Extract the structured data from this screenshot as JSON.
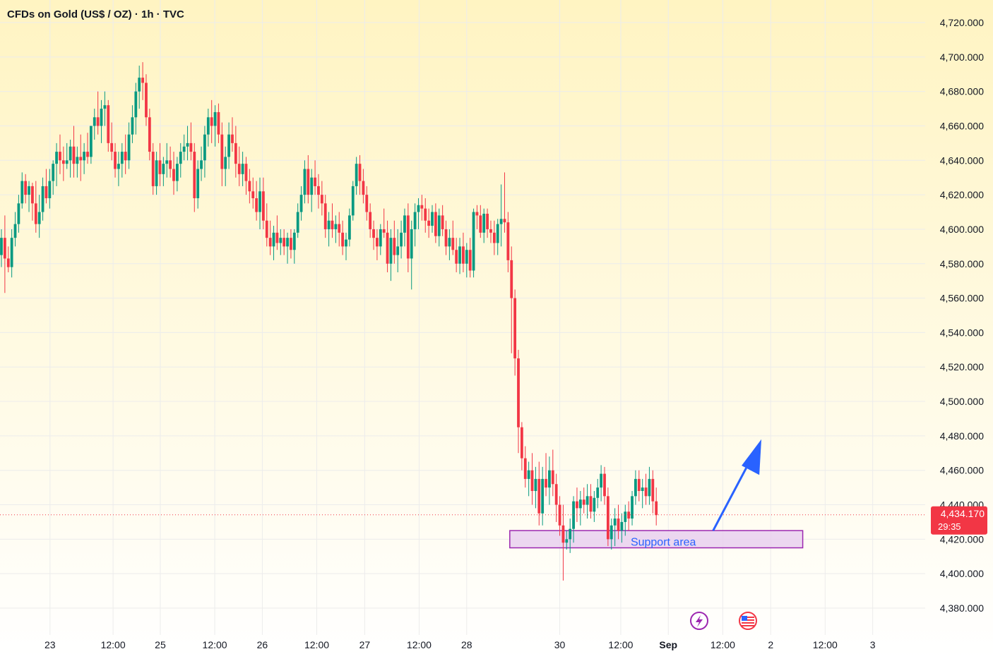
{
  "header": {
    "title": "CFDs on Gold (US$ / OZ) · 1h · TVC"
  },
  "price_badge": {
    "price": "4,434.170",
    "countdown": "29:35"
  },
  "annotation": {
    "support_label": "Support area"
  },
  "icons": [
    "lightning-event-icon",
    "us-flag-event-icon"
  ],
  "colors": {
    "bull": "#089981",
    "bear": "#f23645",
    "support_fill": "#e9d0ee",
    "support_border": "#9c27b0",
    "support_text": "#2962ff",
    "arrow": "#2962ff",
    "badge": "#f23645",
    "grid": "#ececec",
    "bg_top": "#fff4c2",
    "bg_bottom": "#ffffff"
  },
  "chart_data": {
    "type": "candlestick",
    "title": "CFDs on Gold (US$ / OZ) · 1h · TVC",
    "xlabel": "",
    "ylabel": "",
    "ylim": [
      4372,
      4733
    ],
    "y_ticks": [
      4380,
      4400,
      4420,
      4440,
      4460,
      4480,
      4500,
      4520,
      4540,
      4560,
      4580,
      4600,
      4620,
      4640,
      4660,
      4680,
      4700,
      4720
    ],
    "y_tick_labels": [
      "4,380.000",
      "4,400.000",
      "4,420.000",
      "4,440.000",
      "4,460.000",
      "4,480.000",
      "4,500.000",
      "4,520.000",
      "4,540.000",
      "4,560.000",
      "4,580.000",
      "4,600.000",
      "4,620.000",
      "4,640.000",
      "4,660.000",
      "4,680.000",
      "4,700.000",
      "4,720.000"
    ],
    "x_ticks": [
      {
        "idx": 14.1,
        "label": "23"
      },
      {
        "idx": 32.4,
        "label": "12:00"
      },
      {
        "idx": 46.1,
        "label": "25"
      },
      {
        "idx": 61.9,
        "label": "12:00"
      },
      {
        "idx": 75.7,
        "label": "26"
      },
      {
        "idx": 91.5,
        "label": "12:00"
      },
      {
        "idx": 105.4,
        "label": "27"
      },
      {
        "idx": 121.2,
        "label": "12:00"
      },
      {
        "idx": 135.0,
        "label": "28"
      },
      {
        "idx": 162.0,
        "label": "30"
      },
      {
        "idx": 179.7,
        "label": "12:00"
      },
      {
        "idx": 193.5,
        "label": "Sep"
      },
      {
        "idx": 209.3,
        "label": "12:00"
      },
      {
        "idx": 223.2,
        "label": "2"
      },
      {
        "idx": 239.0,
        "label": "12:00"
      },
      {
        "idx": 252.8,
        "label": "3"
      }
    ],
    "grid": true,
    "current_price": 4434.17,
    "support_zone": {
      "low": 4415,
      "high": 4425,
      "start_idx": 147.5,
      "end_idx": 232.5
    },
    "arrow": {
      "from_idx": 206.5,
      "from_price": 4425,
      "to_idx": 220.5,
      "to_price": 4478
    },
    "ohlc": [
      [
        4585,
        4600,
        4578,
        4595
      ],
      [
        4595,
        4608,
        4563,
        4583
      ],
      [
        4583,
        4590,
        4575,
        4578
      ],
      [
        4578,
        4600,
        4572,
        4595
      ],
      [
        4595,
        4610,
        4590,
        4603
      ],
      [
        4603,
        4620,
        4598,
        4615
      ],
      [
        4615,
        4633,
        4612,
        4628
      ],
      [
        4628,
        4632,
        4615,
        4620
      ],
      [
        4620,
        4628,
        4610,
        4625
      ],
      [
        4625,
        4627,
        4605,
        4615
      ],
      [
        4615,
        4628,
        4598,
        4603
      ],
      [
        4603,
        4620,
        4595,
        4610
      ],
      [
        4610,
        4630,
        4605,
        4625
      ],
      [
        4625,
        4635,
        4615,
        4618
      ],
      [
        4618,
        4635,
        4612,
        4628
      ],
      [
        4628,
        4640,
        4620,
        4638
      ],
      [
        4638,
        4650,
        4625,
        4645
      ],
      [
        4645,
        4655,
        4632,
        4640
      ],
      [
        4640,
        4648,
        4628,
        4638
      ],
      [
        4638,
        4650,
        4635,
        4640
      ],
      [
        4640,
        4652,
        4630,
        4648
      ],
      [
        4648,
        4660,
        4630,
        4638
      ],
      [
        4638,
        4648,
        4630,
        4642
      ],
      [
        4642,
        4655,
        4628,
        4640
      ],
      [
        4640,
        4650,
        4632,
        4645
      ],
      [
        4645,
        4656,
        4638,
        4642
      ],
      [
        4642,
        4660,
        4638,
        4660
      ],
      [
        4660,
        4670,
        4652,
        4665
      ],
      [
        4665,
        4680,
        4655,
        4660
      ],
      [
        4660,
        4675,
        4650,
        4670
      ],
      [
        4670,
        4680,
        4660,
        4672
      ],
      [
        4672,
        4675,
        4645,
        4650
      ],
      [
        4650,
        4662,
        4640,
        4645
      ],
      [
        4645,
        4650,
        4630,
        4635
      ],
      [
        4635,
        4645,
        4625,
        4638
      ],
      [
        4638,
        4650,
        4630,
        4645
      ],
      [
        4645,
        4655,
        4632,
        4640
      ],
      [
        4640,
        4662,
        4635,
        4655
      ],
      [
        4655,
        4672,
        4650,
        4665
      ],
      [
        4665,
        4685,
        4655,
        4680
      ],
      [
        4680,
        4695,
        4670,
        4688
      ],
      [
        4688,
        4697,
        4675,
        4685
      ],
      [
        4685,
        4690,
        4660,
        4665
      ],
      [
        4665,
        4670,
        4640,
        4645
      ],
      [
        4645,
        4650,
        4620,
        4625
      ],
      [
        4625,
        4645,
        4620,
        4640
      ],
      [
        4640,
        4650,
        4625,
        4632
      ],
      [
        4632,
        4642,
        4625,
        4638
      ],
      [
        4638,
        4650,
        4630,
        4640
      ],
      [
        4640,
        4648,
        4630,
        4635
      ],
      [
        4635,
        4645,
        4620,
        4628
      ],
      [
        4628,
        4642,
        4622,
        4638
      ],
      [
        4638,
        4650,
        4630,
        4645
      ],
      [
        4645,
        4655,
        4640,
        4648
      ],
      [
        4648,
        4660,
        4640,
        4650
      ],
      [
        4650,
        4662,
        4640,
        4645
      ],
      [
        4645,
        4650,
        4610,
        4618
      ],
      [
        4618,
        4640,
        4612,
        4635
      ],
      [
        4635,
        4648,
        4628,
        4640
      ],
      [
        4640,
        4660,
        4630,
        4655
      ],
      [
        4655,
        4670,
        4648,
        4665
      ],
      [
        4665,
        4675,
        4650,
        4660
      ],
      [
        4660,
        4672,
        4648,
        4668
      ],
      [
        4668,
        4673,
        4650,
        4655
      ],
      [
        4655,
        4662,
        4625,
        4635
      ],
      [
        4635,
        4648,
        4625,
        4642
      ],
      [
        4642,
        4662,
        4635,
        4655
      ],
      [
        4655,
        4665,
        4645,
        4650
      ],
      [
        4650,
        4660,
        4630,
        4638
      ],
      [
        4638,
        4648,
        4625,
        4632
      ],
      [
        4632,
        4645,
        4625,
        4638
      ],
      [
        4638,
        4642,
        4620,
        4628
      ],
      [
        4628,
        4635,
        4615,
        4622
      ],
      [
        4622,
        4630,
        4612,
        4618
      ],
      [
        4618,
        4628,
        4605,
        4610
      ],
      [
        4610,
        4630,
        4600,
        4622
      ],
      [
        4622,
        4630,
        4600,
        4605
      ],
      [
        4605,
        4615,
        4590,
        4595
      ],
      [
        4595,
        4605,
        4585,
        4590
      ],
      [
        4590,
        4602,
        4582,
        4598
      ],
      [
        4598,
        4608,
        4588,
        4592
      ],
      [
        4592,
        4600,
        4585,
        4595
      ],
      [
        4595,
        4600,
        4585,
        4590
      ],
      [
        4590,
        4598,
        4580,
        4595
      ],
      [
        4595,
        4600,
        4583,
        4588
      ],
      [
        4588,
        4600,
        4580,
        4598
      ],
      [
        4598,
        4615,
        4595,
        4610
      ],
      [
        4610,
        4625,
        4605,
        4620
      ],
      [
        4620,
        4640,
        4615,
        4635
      ],
      [
        4635,
        4643,
        4615,
        4620
      ],
      [
        4620,
        4635,
        4610,
        4630
      ],
      [
        4630,
        4640,
        4620,
        4625
      ],
      [
        4625,
        4632,
        4612,
        4620
      ],
      [
        4620,
        4628,
        4608,
        4615
      ],
      [
        4615,
        4620,
        4595,
        4600
      ],
      [
        4600,
        4610,
        4590,
        4605
      ],
      [
        4605,
        4615,
        4595,
        4600
      ],
      [
        4600,
        4608,
        4592,
        4603
      ],
      [
        4603,
        4610,
        4590,
        4598
      ],
      [
        4598,
        4605,
        4585,
        4590
      ],
      [
        4590,
        4598,
        4582,
        4594
      ],
      [
        4594,
        4612,
        4590,
        4608
      ],
      [
        4608,
        4628,
        4605,
        4625
      ],
      [
        4625,
        4642,
        4620,
        4638
      ],
      [
        4638,
        4643,
        4620,
        4628
      ],
      [
        4628,
        4635,
        4615,
        4620
      ],
      [
        4620,
        4625,
        4605,
        4610
      ],
      [
        4610,
        4615,
        4595,
        4600
      ],
      [
        4600,
        4605,
        4588,
        4595
      ],
      [
        4595,
        4600,
        4582,
        4590
      ],
      [
        4590,
        4603,
        4585,
        4600
      ],
      [
        4600,
        4612,
        4595,
        4598
      ],
      [
        4598,
        4605,
        4575,
        4580
      ],
      [
        4580,
        4600,
        4570,
        4595
      ],
      [
        4595,
        4605,
        4580,
        4585
      ],
      [
        4585,
        4600,
        4575,
        4590
      ],
      [
        4590,
        4605,
        4583,
        4598
      ],
      [
        4598,
        4612,
        4590,
        4608
      ],
      [
        4608,
        4615,
        4575,
        4583
      ],
      [
        4583,
        4605,
        4565,
        4600
      ],
      [
        4600,
        4615,
        4590,
        4610
      ],
      [
        4610,
        4618,
        4600,
        4614
      ],
      [
        4614,
        4620,
        4605,
        4612
      ],
      [
        4612,
        4618,
        4598,
        4605
      ],
      [
        4605,
        4612,
        4595,
        4602
      ],
      [
        4602,
        4614,
        4598,
        4610
      ],
      [
        4610,
        4615,
        4592,
        4596
      ],
      [
        4596,
        4612,
        4590,
        4608
      ],
      [
        4608,
        4614,
        4596,
        4600
      ],
      [
        4600,
        4605,
        4585,
        4590
      ],
      [
        4590,
        4600,
        4582,
        4595
      ],
      [
        4595,
        4605,
        4585,
        4588
      ],
      [
        4588,
        4595,
        4575,
        4580
      ],
      [
        4580,
        4595,
        4574,
        4590
      ],
      [
        4590,
        4598,
        4575,
        4580
      ],
      [
        4580,
        4592,
        4572,
        4588
      ],
      [
        4588,
        4595,
        4572,
        4576
      ],
      [
        4576,
        4612,
        4572,
        4610
      ],
      [
        4610,
        4614,
        4600,
        4608
      ],
      [
        4608,
        4614,
        4595,
        4598
      ],
      [
        4598,
        4612,
        4592,
        4609
      ],
      [
        4609,
        4612,
        4595,
        4600
      ],
      [
        4600,
        4605,
        4592,
        4598
      ],
      [
        4598,
        4605,
        4585,
        4592
      ],
      [
        4592,
        4606,
        4585,
        4603
      ],
      [
        4603,
        4626,
        4590,
        4606
      ],
      [
        4606,
        4633,
        4598,
        4604
      ],
      [
        4604,
        4610,
        4575,
        4582
      ],
      [
        4582,
        4590,
        4528,
        4560
      ],
      [
        4560,
        4565,
        4515,
        4525
      ],
      [
        4525,
        4530,
        4470,
        4485
      ],
      [
        4485,
        4488,
        4460,
        4467
      ],
      [
        4467,
        4474,
        4450,
        4455
      ],
      [
        4455,
        4465,
        4445,
        4460
      ],
      [
        4460,
        4470,
        4440,
        4448
      ],
      [
        4448,
        4462,
        4438,
        4455
      ],
      [
        4455,
        4465,
        4428,
        4435
      ],
      [
        4435,
        4462,
        4428,
        4455
      ],
      [
        4455,
        4470,
        4445,
        4450
      ],
      [
        4450,
        4468,
        4440,
        4460
      ],
      [
        4460,
        4472,
        4445,
        4452
      ],
      [
        4452,
        4458,
        4430,
        4440
      ],
      [
        4440,
        4445,
        4422,
        4428
      ],
      [
        4428,
        4440,
        4396,
        4418
      ],
      [
        4418,
        4425,
        4414,
        4420
      ],
      [
        4420,
        4432,
        4412,
        4426
      ],
      [
        4426,
        4445,
        4418,
        4442
      ],
      [
        4442,
        4450,
        4430,
        4438
      ],
      [
        4438,
        4448,
        4428,
        4443
      ],
      [
        4443,
        4450,
        4435,
        4440
      ],
      [
        4440,
        4452,
        4432,
        4445
      ],
      [
        4445,
        4452,
        4432,
        4436
      ],
      [
        4436,
        4448,
        4430,
        4444
      ],
      [
        4444,
        4455,
        4438,
        4450
      ],
      [
        4450,
        4463,
        4442,
        4458
      ],
      [
        4458,
        4462,
        4440,
        4445
      ],
      [
        4445,
        4450,
        4416,
        4420
      ],
      [
        4420,
        4432,
        4414,
        4428
      ],
      [
        4428,
        4438,
        4416,
        4432
      ],
      [
        4432,
        4440,
        4420,
        4425
      ],
      [
        4425,
        4435,
        4418,
        4430
      ],
      [
        4430,
        4440,
        4422,
        4436
      ],
      [
        4436,
        4442,
        4425,
        4432
      ],
      [
        4432,
        4448,
        4428,
        4445
      ],
      [
        4445,
        4460,
        4440,
        4455
      ],
      [
        4455,
        4460,
        4442,
        4448
      ],
      [
        4448,
        4455,
        4438,
        4450
      ],
      [
        4450,
        4458,
        4440,
        4445
      ],
      [
        4445,
        4462,
        4440,
        4455
      ],
      [
        4455,
        4460,
        4435,
        4442
      ],
      [
        4442,
        4450,
        4428,
        4434
      ]
    ]
  }
}
